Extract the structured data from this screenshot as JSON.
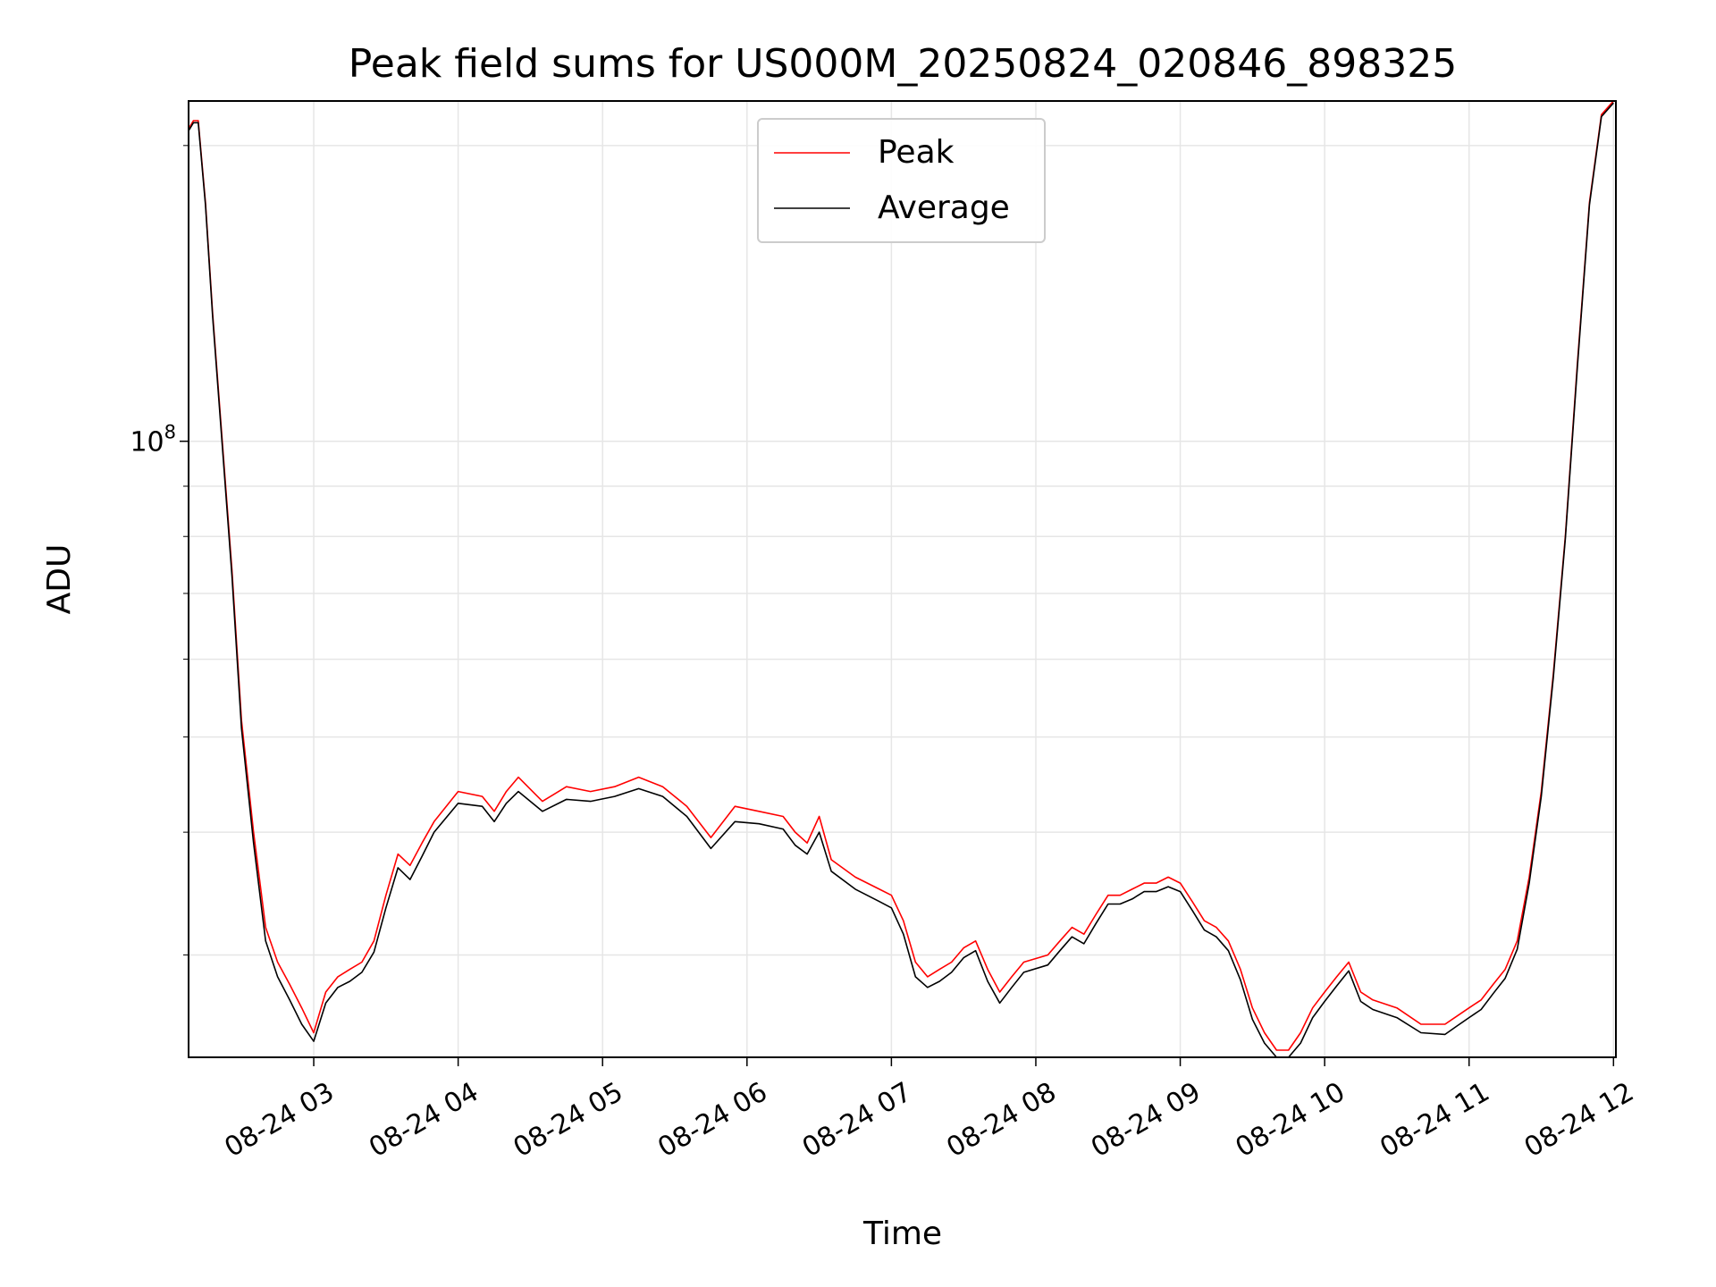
{
  "chart_data": {
    "type": "line",
    "title": "Peak field sums for US000M_20250824_020846_898325",
    "xlabel": "Time",
    "ylabel": "ADU",
    "yscale": "log",
    "ylim": [
      23600000,
      222000000
    ],
    "y_tick_labels": [
      {
        "value": 100000000,
        "base": "10",
        "exp": "8"
      }
    ],
    "y_minor_ticks": [
      30000000,
      40000000,
      50000000,
      60000000,
      70000000,
      80000000,
      90000000,
      200000000
    ],
    "xlim": [
      "2025-08-24 02:08",
      "2025-08-24 12:01"
    ],
    "x_ticks": [
      {
        "value": "2025-08-24 03:00",
        "label": "08-24 03"
      },
      {
        "value": "2025-08-24 04:00",
        "label": "08-24 04"
      },
      {
        "value": "2025-08-24 05:00",
        "label": "08-24 05"
      },
      {
        "value": "2025-08-24 06:00",
        "label": "08-24 06"
      },
      {
        "value": "2025-08-24 07:00",
        "label": "08-24 07"
      },
      {
        "value": "2025-08-24 08:00",
        "label": "08-24 08"
      },
      {
        "value": "2025-08-24 09:00",
        "label": "08-24 09"
      },
      {
        "value": "2025-08-24 10:00",
        "label": "08-24 10"
      },
      {
        "value": "2025-08-24 11:00",
        "label": "08-24 11"
      },
      {
        "value": "2025-08-24 12:00",
        "label": "08-24 12"
      }
    ],
    "grid": true,
    "legend": {
      "position": "upper center"
    },
    "series": [
      {
        "name": "Peak",
        "color": "#ff0000",
        "x": [
          "2025-08-24 02:08",
          "2025-08-24 02:10",
          "2025-08-24 02:12",
          "2025-08-24 02:15",
          "2025-08-24 02:18",
          "2025-08-24 02:22",
          "2025-08-24 02:26",
          "2025-08-24 02:30",
          "2025-08-24 02:35",
          "2025-08-24 02:40",
          "2025-08-24 02:45",
          "2025-08-24 02:50",
          "2025-08-24 02:55",
          "2025-08-24 03:00",
          "2025-08-24 03:05",
          "2025-08-24 03:10",
          "2025-08-24 03:15",
          "2025-08-24 03:20",
          "2025-08-24 03:25",
          "2025-08-24 03:30",
          "2025-08-24 03:35",
          "2025-08-24 03:40",
          "2025-08-24 03:45",
          "2025-08-24 03:50",
          "2025-08-24 04:00",
          "2025-08-24 04:10",
          "2025-08-24 04:15",
          "2025-08-24 04:20",
          "2025-08-24 04:25",
          "2025-08-24 04:35",
          "2025-08-24 04:45",
          "2025-08-24 04:55",
          "2025-08-24 05:05",
          "2025-08-24 05:15",
          "2025-08-24 05:25",
          "2025-08-24 05:35",
          "2025-08-24 05:45",
          "2025-08-24 05:55",
          "2025-08-24 06:05",
          "2025-08-24 06:15",
          "2025-08-24 06:20",
          "2025-08-24 06:25",
          "2025-08-24 06:30",
          "2025-08-24 06:35",
          "2025-08-24 06:45",
          "2025-08-24 06:55",
          "2025-08-24 07:00",
          "2025-08-24 07:05",
          "2025-08-24 07:10",
          "2025-08-24 07:15",
          "2025-08-24 07:20",
          "2025-08-24 07:25",
          "2025-08-24 07:30",
          "2025-08-24 07:35",
          "2025-08-24 07:40",
          "2025-08-24 07:45",
          "2025-08-24 07:50",
          "2025-08-24 07:55",
          "2025-08-24 08:05",
          "2025-08-24 08:10",
          "2025-08-24 08:15",
          "2025-08-24 08:20",
          "2025-08-24 08:25",
          "2025-08-24 08:30",
          "2025-08-24 08:35",
          "2025-08-24 08:40",
          "2025-08-24 08:45",
          "2025-08-24 08:50",
          "2025-08-24 08:55",
          "2025-08-24 09:00",
          "2025-08-24 09:05",
          "2025-08-24 09:10",
          "2025-08-24 09:15",
          "2025-08-24 09:20",
          "2025-08-24 09:25",
          "2025-08-24 09:30",
          "2025-08-24 09:35",
          "2025-08-24 09:40",
          "2025-08-24 09:45",
          "2025-08-24 09:50",
          "2025-08-24 09:55",
          "2025-08-24 10:00",
          "2025-08-24 10:05",
          "2025-08-24 10:10",
          "2025-08-24 10:15",
          "2025-08-24 10:20",
          "2025-08-24 10:30",
          "2025-08-24 10:40",
          "2025-08-24 10:50",
          "2025-08-24 10:55",
          "2025-08-24 11:00",
          "2025-08-24 11:05",
          "2025-08-24 11:10",
          "2025-08-24 11:15",
          "2025-08-24 11:20",
          "2025-08-24 11:25",
          "2025-08-24 11:30",
          "2025-08-24 11:35",
          "2025-08-24 11:40",
          "2025-08-24 11:45",
          "2025-08-24 11:50",
          "2025-08-24 11:55",
          "2025-08-24 12:00"
        ],
        "y": [
          208000000,
          212000000,
          212000000,
          175000000,
          135000000,
          100000000,
          74000000,
          52000000,
          40000000,
          32000000,
          29500000,
          28000000,
          26500000,
          25000000,
          27500000,
          28500000,
          29000000,
          29500000,
          31000000,
          34500000,
          38000000,
          37000000,
          39000000,
          41000000,
          44000000,
          43500000,
          42000000,
          44000000,
          45500000,
          43000000,
          44500000,
          44000000,
          44500000,
          45500000,
          44500000,
          42500000,
          39500000,
          42500000,
          42000000,
          41500000,
          40000000,
          39000000,
          41500000,
          37500000,
          36000000,
          35000000,
          34500000,
          32500000,
          29500000,
          28500000,
          29000000,
          29500000,
          30500000,
          31000000,
          29000000,
          27500000,
          28500000,
          29500000,
          30000000,
          31000000,
          32000000,
          31500000,
          33000000,
          34500000,
          34500000,
          35000000,
          35500000,
          35500000,
          36000000,
          35500000,
          34000000,
          32500000,
          32000000,
          31000000,
          29000000,
          26500000,
          25000000,
          24000000,
          24000000,
          25000000,
          26500000,
          27500000,
          28500000,
          29500000,
          27500000,
          27000000,
          26500000,
          25500000,
          25500000,
          26000000,
          26500000,
          27000000,
          28000000,
          29000000,
          31000000,
          36000000,
          44000000,
          58000000,
          80000000,
          120000000,
          175000000,
          215000000,
          222000000
        ]
      },
      {
        "name": "Average",
        "color": "#000000",
        "x": [
          "2025-08-24 02:08",
          "2025-08-24 02:10",
          "2025-08-24 02:12",
          "2025-08-24 02:15",
          "2025-08-24 02:18",
          "2025-08-24 02:22",
          "2025-08-24 02:26",
          "2025-08-24 02:30",
          "2025-08-24 02:35",
          "2025-08-24 02:40",
          "2025-08-24 02:45",
          "2025-08-24 02:50",
          "2025-08-24 02:55",
          "2025-08-24 03:00",
          "2025-08-24 03:05",
          "2025-08-24 03:10",
          "2025-08-24 03:15",
          "2025-08-24 03:20",
          "2025-08-24 03:25",
          "2025-08-24 03:30",
          "2025-08-24 03:35",
          "2025-08-24 03:40",
          "2025-08-24 03:45",
          "2025-08-24 03:50",
          "2025-08-24 04:00",
          "2025-08-24 04:10",
          "2025-08-24 04:15",
          "2025-08-24 04:20",
          "2025-08-24 04:25",
          "2025-08-24 04:35",
          "2025-08-24 04:45",
          "2025-08-24 04:55",
          "2025-08-24 05:05",
          "2025-08-24 05:15",
          "2025-08-24 05:25",
          "2025-08-24 05:35",
          "2025-08-24 05:45",
          "2025-08-24 05:55",
          "2025-08-24 06:05",
          "2025-08-24 06:15",
          "2025-08-24 06:20",
          "2025-08-24 06:25",
          "2025-08-24 06:30",
          "2025-08-24 06:35",
          "2025-08-24 06:45",
          "2025-08-24 06:55",
          "2025-08-24 07:00",
          "2025-08-24 07:05",
          "2025-08-24 07:10",
          "2025-08-24 07:15",
          "2025-08-24 07:20",
          "2025-08-24 07:25",
          "2025-08-24 07:30",
          "2025-08-24 07:35",
          "2025-08-24 07:40",
          "2025-08-24 07:45",
          "2025-08-24 07:50",
          "2025-08-24 07:55",
          "2025-08-24 08:05",
          "2025-08-24 08:10",
          "2025-08-24 08:15",
          "2025-08-24 08:20",
          "2025-08-24 08:25",
          "2025-08-24 08:30",
          "2025-08-24 08:35",
          "2025-08-24 08:40",
          "2025-08-24 08:45",
          "2025-08-24 08:50",
          "2025-08-24 08:55",
          "2025-08-24 09:00",
          "2025-08-24 09:05",
          "2025-08-24 09:10",
          "2025-08-24 09:15",
          "2025-08-24 09:20",
          "2025-08-24 09:25",
          "2025-08-24 09:30",
          "2025-08-24 09:35",
          "2025-08-24 09:40",
          "2025-08-24 09:45",
          "2025-08-24 09:50",
          "2025-08-24 09:55",
          "2025-08-24 10:00",
          "2025-08-24 10:05",
          "2025-08-24 10:10",
          "2025-08-24 10:15",
          "2025-08-24 10:20",
          "2025-08-24 10:30",
          "2025-08-24 10:40",
          "2025-08-24 10:50",
          "2025-08-24 10:55",
          "2025-08-24 11:00",
          "2025-08-24 11:05",
          "2025-08-24 11:10",
          "2025-08-24 11:15",
          "2025-08-24 11:20",
          "2025-08-24 11:25",
          "2025-08-24 11:30",
          "2025-08-24 11:35",
          "2025-08-24 11:40",
          "2025-08-24 11:45",
          "2025-08-24 11:50",
          "2025-08-24 11:55",
          "2025-08-24 12:00"
        ],
        "y": [
          207000000,
          211000000,
          211000000,
          174000000,
          134000000,
          99000000,
          73000000,
          51000000,
          39000000,
          31000000,
          28500000,
          27000000,
          25500000,
          24500000,
          26800000,
          27800000,
          28200000,
          28800000,
          30200000,
          33500000,
          36800000,
          35800000,
          37800000,
          40000000,
          42800000,
          42500000,
          41000000,
          42800000,
          44000000,
          42000000,
          43200000,
          43000000,
          43500000,
          44300000,
          43500000,
          41500000,
          38500000,
          41000000,
          40800000,
          40300000,
          38800000,
          38000000,
          40000000,
          36500000,
          35000000,
          34000000,
          33500000,
          31500000,
          28500000,
          27800000,
          28200000,
          28800000,
          29800000,
          30300000,
          28200000,
          26800000,
          27800000,
          28800000,
          29300000,
          30300000,
          31300000,
          30800000,
          32300000,
          33800000,
          33800000,
          34200000,
          34800000,
          34800000,
          35200000,
          34800000,
          33300000,
          31800000,
          31300000,
          30300000,
          28300000,
          25800000,
          24400000,
          23600000,
          23600000,
          24400000,
          25900000,
          26900000,
          27900000,
          28900000,
          26900000,
          26400000,
          25900000,
          25000000,
          24900000,
          25400000,
          25900000,
          26400000,
          27400000,
          28400000,
          30400000,
          35500000,
          43500000,
          57500000,
          79500000,
          119000000,
          174000000,
          214000000,
          221000000
        ]
      }
    ]
  }
}
